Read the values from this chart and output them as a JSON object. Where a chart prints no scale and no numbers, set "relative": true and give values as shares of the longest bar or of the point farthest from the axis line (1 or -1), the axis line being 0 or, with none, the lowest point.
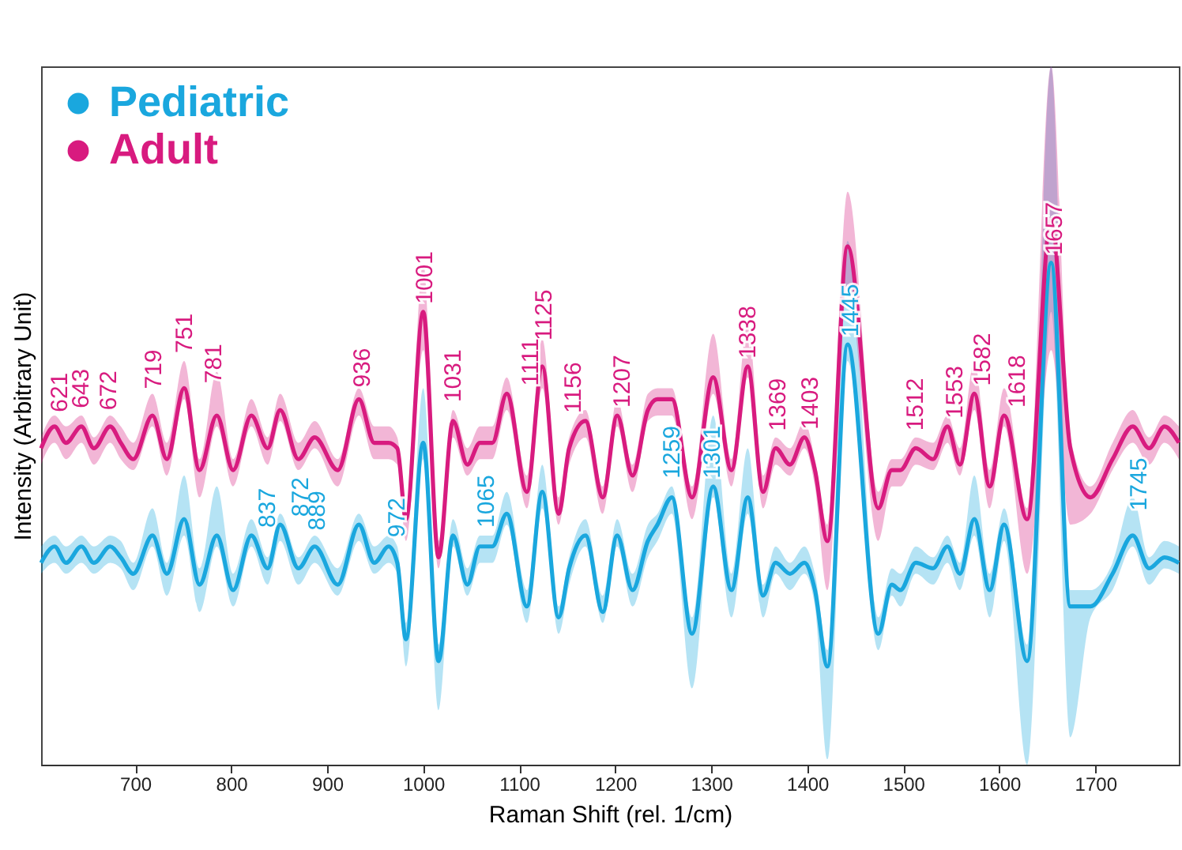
{
  "chart_data": {
    "type": "line",
    "relative": true,
    "xlabel": "Raman Shift (rel. 1/cm)",
    "ylabel": "Intensity (Arbitrary Unit)",
    "xlim": [
      602,
      1787
    ],
    "xticks": [
      700,
      800,
      900,
      1000,
      1100,
      1200,
      1300,
      1400,
      1500,
      1600,
      1700
    ],
    "legend": "top left",
    "x": [
      602,
      616,
      628,
      644,
      657,
      674,
      685,
      698,
      718,
      733,
      751,
      767,
      785,
      802,
      821,
      838,
      851,
      870,
      887,
      911,
      933,
      949,
      964,
      973,
      982,
      1000,
      1016,
      1031,
      1046,
      1059,
      1072,
      1087,
      1108,
      1124,
      1141,
      1152,
      1169,
      1187,
      1202,
      1218,
      1234,
      1244,
      1259,
      1280,
      1302,
      1321,
      1338,
      1354,
      1367,
      1382,
      1397,
      1408,
      1421,
      1442,
      1474,
      1488,
      1497,
      1513,
      1531,
      1546,
      1559,
      1574,
      1590,
      1605,
      1629,
      1654,
      1674,
      1695,
      1718,
      1739,
      1756,
      1772,
      1787
    ],
    "series": [
      {
        "name": "Pediatric",
        "color": "#1aa7de",
        "values": [
          0.37,
          0.4,
          0.37,
          0.4,
          0.37,
          0.4,
          0.38,
          0.35,
          0.42,
          0.35,
          0.45,
          0.33,
          0.42,
          0.32,
          0.42,
          0.36,
          0.44,
          0.36,
          0.4,
          0.33,
          0.44,
          0.37,
          0.4,
          0.37,
          0.23,
          0.59,
          0.19,
          0.42,
          0.33,
          0.4,
          0.4,
          0.46,
          0.29,
          0.5,
          0.27,
          0.36,
          0.42,
          0.28,
          0.42,
          0.32,
          0.41,
          0.44,
          0.49,
          0.24,
          0.51,
          0.32,
          0.49,
          0.31,
          0.37,
          0.35,
          0.37,
          0.32,
          0.18,
          0.77,
          0.24,
          0.33,
          0.32,
          0.37,
          0.36,
          0.4,
          0.35,
          0.45,
          0.32,
          0.44,
          0.19,
          0.92,
          0.29,
          0.29,
          0.35,
          0.42,
          0.36,
          0.38,
          0.37
        ],
        "upper": [
          0.4,
          0.42,
          0.4,
          0.42,
          0.4,
          0.42,
          0.41,
          0.37,
          0.47,
          0.37,
          0.53,
          0.36,
          0.51,
          0.35,
          0.45,
          0.38,
          0.46,
          0.38,
          0.42,
          0.36,
          0.46,
          0.4,
          0.42,
          0.4,
          0.26,
          0.69,
          0.22,
          0.45,
          0.36,
          0.42,
          0.42,
          0.5,
          0.32,
          0.55,
          0.29,
          0.38,
          0.45,
          0.31,
          0.45,
          0.35,
          0.44,
          0.46,
          0.51,
          0.27,
          0.64,
          0.35,
          0.58,
          0.33,
          0.4,
          0.37,
          0.4,
          0.35,
          0.21,
          0.96,
          0.27,
          0.36,
          0.35,
          0.4,
          0.38,
          0.42,
          0.37,
          0.53,
          0.35,
          0.47,
          0.22,
          1.28,
          0.32,
          0.32,
          0.37,
          0.49,
          0.38,
          0.41,
          0.4
        ],
        "lower": [
          0.35,
          0.37,
          0.35,
          0.37,
          0.35,
          0.37,
          0.36,
          0.32,
          0.4,
          0.31,
          0.42,
          0.28,
          0.4,
          0.29,
          0.4,
          0.33,
          0.41,
          0.33,
          0.37,
          0.31,
          0.41,
          0.35,
          0.37,
          0.35,
          0.18,
          0.56,
          0.1,
          0.4,
          0.31,
          0.37,
          0.37,
          0.44,
          0.26,
          0.47,
          0.24,
          0.33,
          0.4,
          0.26,
          0.4,
          0.29,
          0.38,
          0.41,
          0.46,
          0.14,
          0.49,
          0.27,
          0.46,
          0.27,
          0.35,
          0.32,
          0.35,
          0.29,
          0.01,
          0.74,
          0.21,
          0.31,
          0.29,
          0.35,
          0.33,
          0.37,
          0.32,
          0.42,
          0.27,
          0.41,
          0,
          0.83,
          0.05,
          0.27,
          0.32,
          0.4,
          0.33,
          0.36,
          0.35
        ]
      },
      {
        "name": "Adult",
        "color": "#d81b7f",
        "values": [
          0.58,
          0.62,
          0.59,
          0.62,
          0.58,
          0.62,
          0.59,
          0.56,
          0.64,
          0.56,
          0.69,
          0.54,
          0.64,
          0.54,
          0.64,
          0.58,
          0.65,
          0.56,
          0.6,
          0.54,
          0.67,
          0.59,
          0.59,
          0.58,
          0.45,
          0.83,
          0.38,
          0.63,
          0.55,
          0.59,
          0.59,
          0.68,
          0.5,
          0.73,
          0.46,
          0.58,
          0.63,
          0.49,
          0.64,
          0.53,
          0.65,
          0.67,
          0.67,
          0.49,
          0.71,
          0.54,
          0.73,
          0.5,
          0.58,
          0.55,
          0.6,
          0.54,
          0.41,
          0.95,
          0.47,
          0.54,
          0.54,
          0.58,
          0.56,
          0.62,
          0.55,
          0.68,
          0.51,
          0.64,
          0.45,
          1,
          0.58,
          0.49,
          0.56,
          0.62,
          0.58,
          0.62,
          0.59
        ],
        "upper": [
          0.6,
          0.64,
          0.62,
          0.64,
          0.6,
          0.64,
          0.62,
          0.59,
          0.68,
          0.59,
          0.74,
          0.56,
          0.72,
          0.56,
          0.67,
          0.6,
          0.68,
          0.59,
          0.63,
          0.56,
          0.69,
          0.62,
          0.62,
          0.6,
          0.47,
          0.92,
          0.41,
          0.65,
          0.58,
          0.62,
          0.62,
          0.71,
          0.53,
          0.78,
          0.49,
          0.6,
          0.65,
          0.51,
          0.67,
          0.55,
          0.68,
          0.69,
          0.69,
          0.51,
          0.79,
          0.56,
          0.81,
          0.53,
          0.6,
          0.58,
          0.63,
          0.56,
          0.44,
          1.05,
          0.5,
          0.56,
          0.56,
          0.6,
          0.59,
          0.64,
          0.58,
          0.74,
          0.54,
          0.69,
          0.47,
          1.28,
          0.6,
          0.51,
          0.59,
          0.65,
          0.6,
          0.64,
          0.62
        ],
        "lower": [
          0.55,
          0.59,
          0.56,
          0.59,
          0.55,
          0.59,
          0.56,
          0.54,
          0.62,
          0.53,
          0.67,
          0.49,
          0.62,
          0.51,
          0.62,
          0.55,
          0.63,
          0.54,
          0.58,
          0.51,
          0.64,
          0.56,
          0.56,
          0.55,
          0.41,
          0.76,
          0.36,
          0.6,
          0.53,
          0.56,
          0.56,
          0.65,
          0.47,
          0.69,
          0.44,
          0.55,
          0.6,
          0.46,
          0.62,
          0.5,
          0.63,
          0.64,
          0.64,
          0.45,
          0.68,
          0.51,
          0.71,
          0.47,
          0.55,
          0.53,
          0.58,
          0.51,
          0.32,
          0.88,
          0.41,
          0.51,
          0.51,
          0.55,
          0.54,
          0.59,
          0.53,
          0.65,
          0.47,
          0.62,
          0.35,
          0.76,
          0.44,
          0.46,
          0.54,
          0.59,
          0.55,
          0.59,
          0.56
        ]
      }
    ],
    "annotations": [
      {
        "text": "621",
        "x": 621,
        "y": 0.62
      },
      {
        "text": "643",
        "x": 643,
        "y": 0.62
      },
      {
        "text": "672",
        "x": 672,
        "y": 0.62
      },
      {
        "text": "719",
        "x": 719,
        "y": 0.64
      },
      {
        "text": "751",
        "x": 751,
        "y": 0.69
      },
      {
        "text": "781",
        "x": 781,
        "y": 0.64
      },
      {
        "text": "837",
        "x": 837,
        "y": 0.42
      },
      {
        "text": "872",
        "x": 872,
        "y": 0.44
      },
      {
        "text": "889",
        "x": 889,
        "y": 0.4
      },
      {
        "text": "936",
        "x": 936,
        "y": 0.67
      },
      {
        "text": "972",
        "x": 972,
        "y": 0.4
      },
      {
        "text": "1001",
        "x": 1001,
        "y": 0.83
      },
      {
        "text": "1031",
        "x": 1031,
        "y": 0.63
      },
      {
        "text": "1065",
        "x": 1065,
        "y": 0.4
      },
      {
        "text": "1111",
        "x": 1111,
        "y": 0.68
      },
      {
        "text": "1125",
        "x": 1125,
        "y": 0.73
      },
      {
        "text": "1156",
        "x": 1156,
        "y": 0.63
      },
      {
        "text": "1207",
        "x": 1207,
        "y": 0.64
      },
      {
        "text": "1259",
        "x": 1259,
        "y": 0.49
      },
      {
        "text": "1301",
        "x": 1301,
        "y": 0.51
      },
      {
        "text": "1338",
        "x": 1338,
        "y": 0.73
      },
      {
        "text": "1369",
        "x": 1369,
        "y": 0.58
      },
      {
        "text": "1403",
        "x": 1403,
        "y": 0.6
      },
      {
        "text": "1445",
        "x": 1445,
        "y": 0.77
      },
      {
        "text": "1512",
        "x": 1512,
        "y": 0.58
      },
      {
        "text": "1553",
        "x": 1553,
        "y": 0.62
      },
      {
        "text": "1582",
        "x": 1582,
        "y": 0.68
      },
      {
        "text": "1618",
        "x": 1618,
        "y": 0.64
      },
      {
        "text": "1657",
        "x": 1657,
        "y": 0.92
      },
      {
        "text": "1745",
        "x": 1745,
        "y": 0.42
      }
    ]
  }
}
